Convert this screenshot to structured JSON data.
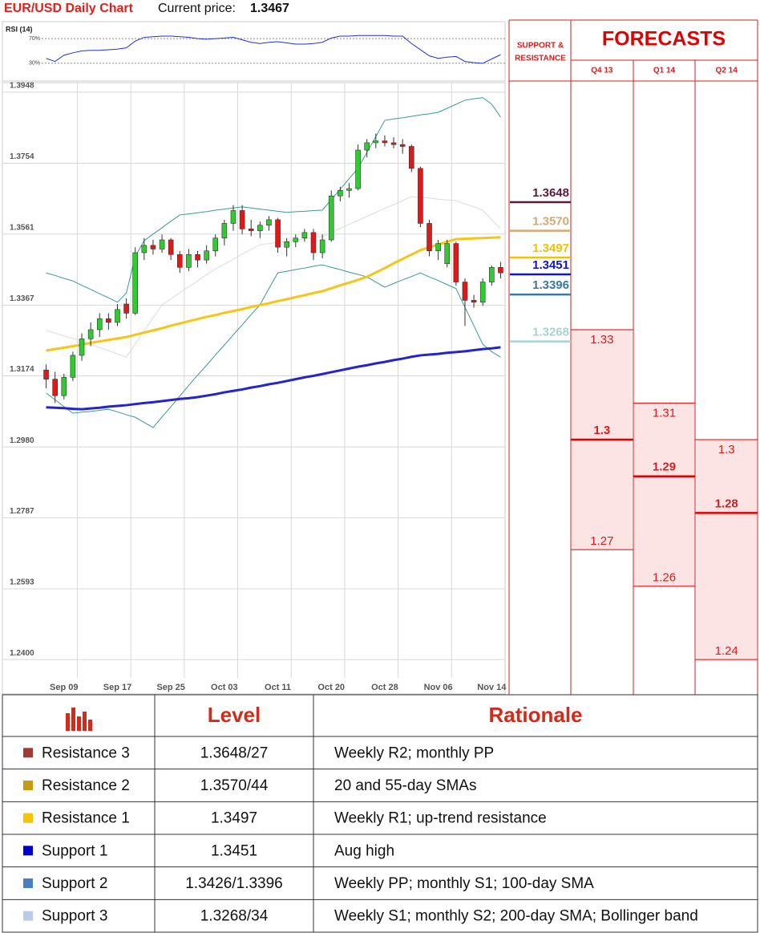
{
  "header": {
    "title": "EUR/USD Daily Chart",
    "price_label": "Current price:",
    "price": 1.3467
  },
  "chart_data": [
    {
      "type": "candlestick",
      "categories": [
        null,
        null,
        "Sep 09",
        null,
        null,
        null,
        null,
        null,
        "Sep 17",
        null,
        null,
        null,
        null,
        null,
        "Sep 25",
        null,
        null,
        null,
        null,
        null,
        "Oct 03",
        null,
        null,
        null,
        null,
        null,
        "Oct 11",
        null,
        null,
        null,
        null,
        null,
        "Oct 20",
        null,
        null,
        null,
        null,
        null,
        "Oct 28",
        null,
        null,
        null,
        null,
        null,
        "Nov 06",
        null,
        null,
        null,
        null,
        null,
        "Nov 14",
        null
      ],
      "open": [
        1.319,
        1.3165,
        1.312,
        1.317,
        1.323,
        1.3275,
        1.33,
        1.333,
        1.332,
        1.337,
        1.3345,
        1.351,
        1.353,
        1.352,
        1.3545,
        1.3505,
        1.347,
        1.3505,
        1.349,
        1.3515,
        1.355,
        1.359,
        1.3625,
        1.3575,
        1.357,
        1.3585,
        1.36,
        1.3525,
        1.354,
        1.355,
        1.3565,
        1.351,
        1.3545,
        1.3665,
        1.368,
        1.3685,
        1.379,
        1.381,
        1.3815,
        1.381,
        1.3805,
        1.38,
        1.374,
        1.359,
        1.3515,
        1.348,
        1.3535,
        1.343,
        1.338,
        1.3375,
        1.343,
        1.347
      ],
      "high": [
        1.3205,
        1.3185,
        1.318,
        1.324,
        1.329,
        1.332,
        1.3345,
        1.3345,
        1.337,
        1.3385,
        1.3525,
        1.355,
        1.3545,
        1.356,
        1.355,
        1.3515,
        1.352,
        1.3515,
        1.353,
        1.356,
        1.36,
        1.364,
        1.364,
        1.36,
        1.3595,
        1.361,
        1.3605,
        1.355,
        1.356,
        1.3575,
        1.3575,
        1.356,
        1.368,
        1.369,
        1.37,
        1.3805,
        1.382,
        1.3835,
        1.383,
        1.3825,
        1.382,
        1.3805,
        1.3745,
        1.36,
        1.3545,
        1.3545,
        1.354,
        1.344,
        1.3395,
        1.344,
        1.3475,
        1.3485
      ],
      "low": [
        1.314,
        1.31,
        1.311,
        1.316,
        1.3215,
        1.3255,
        1.328,
        1.33,
        1.331,
        1.333,
        1.334,
        1.349,
        1.3505,
        1.351,
        1.349,
        1.3455,
        1.346,
        1.347,
        1.348,
        1.35,
        1.353,
        1.357,
        1.356,
        1.3555,
        1.355,
        1.357,
        1.351,
        1.35,
        1.3525,
        1.354,
        1.349,
        1.3495,
        1.354,
        1.365,
        1.366,
        1.368,
        1.377,
        1.3795,
        1.38,
        1.3795,
        1.378,
        1.373,
        1.358,
        1.35,
        1.349,
        1.347,
        1.342,
        1.331,
        1.336,
        1.3365,
        1.342,
        1.344
      ],
      "close": [
        1.3165,
        1.312,
        1.317,
        1.323,
        1.3275,
        1.33,
        1.333,
        1.332,
        1.3355,
        1.3345,
        1.351,
        1.353,
        1.352,
        1.3545,
        1.3505,
        1.347,
        1.3505,
        1.349,
        1.3515,
        1.355,
        1.359,
        1.3625,
        1.3575,
        1.357,
        1.3585,
        1.36,
        1.3525,
        1.354,
        1.355,
        1.3565,
        1.351,
        1.3545,
        1.3665,
        1.368,
        1.3685,
        1.379,
        1.381,
        1.3815,
        1.381,
        1.3805,
        1.38,
        1.374,
        1.359,
        1.3515,
        1.3535,
        1.3535,
        1.343,
        1.338,
        1.3375,
        1.343,
        1.347,
        1.3455
      ],
      "up_color": "#2ecc2e",
      "down_color": "#e01818",
      "series": [
        {
          "color": "#dcdcdc",
          "width": 1,
          "values": [
            1.3298,
            1.3291,
            1.3283,
            1.3276,
            1.3269,
            1.326,
            1.3251,
            1.3243,
            1.3234,
            1.3225,
            1.3261,
            1.3297,
            1.3332,
            1.3368,
            1.3384,
            1.3401,
            1.3417,
            1.3433,
            1.345,
            1.3466,
            1.3479,
            1.3492,
            1.3506,
            1.3519,
            1.3532,
            1.3535,
            1.3538,
            1.3541,
            1.3545,
            1.3548,
            1.3551,
            1.3554,
            1.3565,
            1.3576,
            1.3587,
            1.3598,
            1.3609,
            1.362,
            1.3631,
            1.3641,
            1.3652,
            1.3663,
            1.3661,
            1.3659,
            1.3656,
            1.3654,
            1.3652,
            1.3643,
            1.3635,
            1.3626,
            1.36,
            1.3575
          ]
        },
        {
          "color": "#3a9a96",
          "width": 1,
          "values": [
            1.3455,
            1.3448,
            1.344,
            1.3433,
            1.3421,
            1.341,
            1.3398,
            1.3387,
            1.3375,
            1.34,
            1.35,
            1.3543,
            1.3561,
            1.3578,
            1.3596,
            1.3613,
            1.3616,
            1.3619,
            1.3622,
            1.3626,
            1.3629,
            1.3632,
            1.3635,
            1.3632,
            1.3629,
            1.3626,
            1.3623,
            1.362,
            1.3622,
            1.3623,
            1.3625,
            1.3626,
            1.3655,
            1.3683,
            1.3712,
            1.374,
            1.3784,
            1.3827,
            1.3871,
            1.3875,
            1.3878,
            1.3882,
            1.3886,
            1.3889,
            1.3893,
            1.3904,
            1.3915,
            1.3926,
            1.393,
            1.3933,
            1.3915,
            1.388
          ]
        },
        {
          "color": "#3a9a96",
          "width": 1,
          "values": [
            1.3127,
            1.3109,
            1.309,
            1.3072,
            1.3075,
            1.3077,
            1.308,
            1.3083,
            1.3076,
            1.3068,
            1.3061,
            1.3047,
            1.3033,
            1.3062,
            1.309,
            1.3119,
            1.3148,
            1.3176,
            1.3203,
            1.3231,
            1.3258,
            1.3286,
            1.3313,
            1.3341,
            1.3368,
            1.3412,
            1.3455,
            1.3459,
            1.3464,
            1.3468,
            1.3473,
            1.3477,
            1.347,
            1.3464,
            1.3457,
            1.3451,
            1.3444,
            1.343,
            1.3416,
            1.3426,
            1.3436,
            1.3445,
            1.3455,
            1.3444,
            1.3434,
            1.3423,
            1.3412,
            1.3361,
            1.3311,
            1.326,
            1.324,
            1.3225
          ]
        },
        {
          "color": "#f5c518",
          "width": 3,
          "values": [
            1.3243,
            1.3247,
            1.3251,
            1.3255,
            1.3259,
            1.3264,
            1.3268,
            1.3272,
            1.3276,
            1.328,
            1.3286,
            1.3292,
            1.3298,
            1.3304,
            1.3311,
            1.3317,
            1.3323,
            1.3329,
            1.3335,
            1.334,
            1.3346,
            1.3351,
            1.3356,
            1.3362,
            1.3367,
            1.3372,
            1.3378,
            1.3383,
            1.3389,
            1.3394,
            1.34,
            1.3405,
            1.3413,
            1.3421,
            1.3428,
            1.3436,
            1.3444,
            1.3456,
            1.3468,
            1.3481,
            1.3493,
            1.3505,
            1.3517,
            1.3525,
            1.3532,
            1.354,
            1.3547,
            1.3548,
            1.3549,
            1.355,
            1.3551,
            1.3552
          ]
        },
        {
          "color": "#2424cc",
          "width": 3,
          "values": [
            1.3088,
            1.3087,
            1.3086,
            1.3084,
            1.3083,
            1.3085,
            1.3087,
            1.309,
            1.3092,
            1.3094,
            1.3097,
            1.31,
            1.3102,
            1.3105,
            1.3108,
            1.3111,
            1.3113,
            1.3116,
            1.312,
            1.3124,
            1.3129,
            1.3133,
            1.3137,
            1.3142,
            1.3146,
            1.3151,
            1.3155,
            1.316,
            1.3165,
            1.317,
            1.3174,
            1.3179,
            1.3184,
            1.3189,
            1.3194,
            1.3199,
            1.3203,
            1.3208,
            1.3212,
            1.3217,
            1.3221,
            1.3226,
            1.323,
            1.3232,
            1.3234,
            1.3237,
            1.3239,
            1.3241,
            1.3244,
            1.3247,
            1.3249,
            1.3252
          ]
        }
      ],
      "ylim": [
        1.235,
        1.3974
      ],
      "yticks": [
        1.3948,
        1.3754,
        1.3561,
        1.3367,
        1.3174,
        {
          "value": 1.298,
          "label": "1.2980"
        },
        1.2787,
        1.2593,
        {
          "value": 1.24,
          "label": "1.2400"
        }
      ],
      "grid": true
    },
    {
      "type": "line",
      "title": "RSI (14)",
      "color": "#2233cc",
      "values": [
        38,
        33,
        43,
        47,
        50,
        51,
        51,
        52,
        53,
        55,
        66,
        72,
        73,
        74,
        74,
        73,
        72,
        70,
        69,
        70,
        71,
        72,
        68,
        64,
        62,
        64,
        65,
        63,
        61,
        61,
        62,
        64,
        71,
        74,
        74,
        75,
        75,
        75,
        75,
        74,
        74,
        62,
        52,
        42,
        38,
        40,
        41,
        33,
        31,
        30,
        37,
        44
      ],
      "ylim": [
        0,
        100
      ],
      "yticks": [
        {
          "value": 70,
          "label": "70%"
        },
        {
          "value": 30,
          "label": "30%"
        }
      ]
    },
    {
      "type": "levels",
      "title": [
        "SUPPORT &",
        "RESISTANCE"
      ],
      "values": [
        1.3648,
        1.357,
        1.3497,
        1.3451,
        1.3396,
        1.3268
      ],
      "value_labels": [
        "1.3648",
        "1.3570",
        "1.3497",
        "1.3451",
        "1.3396",
        "1.3268"
      ],
      "colors": [
        "#5c1a3a",
        "#d4aa70",
        "#f2c200",
        "#1414c8",
        "#3a78a8",
        "#a8d4d0"
      ]
    },
    {
      "type": "forecast",
      "title": "FORECASTS",
      "categories": [
        "Q4 13",
        "Q1 14",
        "Q2 14"
      ],
      "high": [
        1.33,
        1.31,
        1.3
      ],
      "mid": [
        1.3,
        1.29,
        1.28
      ],
      "low": [
        1.27,
        1.26,
        1.24
      ],
      "color": "#e00000",
      "fill": "#fde4e4"
    }
  ],
  "table": {
    "header": [
      "Level",
      "Rationale"
    ],
    "rows": [
      {
        "color": "#9e3b36",
        "label": "Resistance 3",
        "level": "1.3648/27",
        "rationale": "Weekly R2; monthly PP"
      },
      {
        "color": "#c89a10",
        "label": "Resistance 2",
        "level": "1.3570/44",
        "rationale": "20 and 55-day SMAs"
      },
      {
        "color": "#f5c400",
        "label": "Resistance 1",
        "level": "1.3497",
        "rationale": "Weekly R1; up-trend resistance"
      },
      {
        "color": "#0000cc",
        "label": "Support 1",
        "level": "1.3451",
        "rationale": "Aug high"
      },
      {
        "color": "#4a7ec0",
        "label": "Support 2",
        "level": "1.3426/1.3396",
        "rationale": "Weekly PP; monthly S1; 100-day SMA"
      },
      {
        "color": "#b8cce8",
        "label": "Support 3",
        "level": "1.3268/34",
        "rationale": "Weekly S1; monthly S2; 200-day SMA; Bollinger band"
      }
    ]
  }
}
